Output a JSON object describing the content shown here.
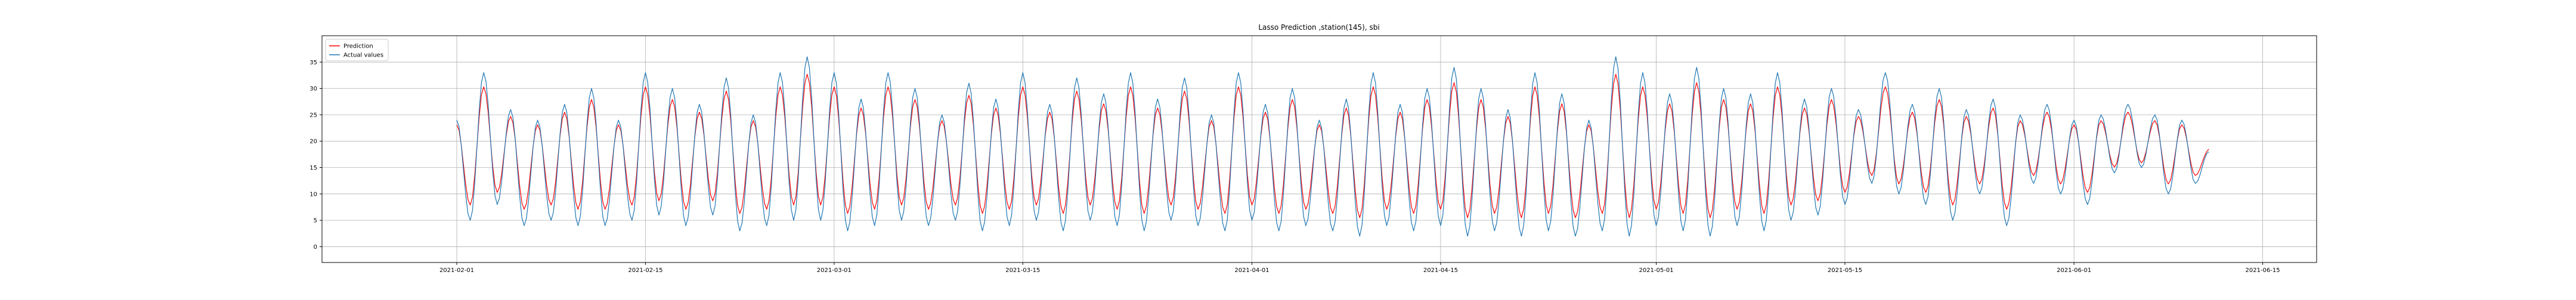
{
  "chart_data": {
    "type": "line",
    "title": "Lasso Prediction ,station(145), sbi",
    "xlabel": "",
    "ylabel": "",
    "grid": true,
    "legend_position": "top-left",
    "x_range": [
      "2021-01-22",
      "2021-06-19"
    ],
    "ylim": [
      -3,
      40
    ],
    "x_ticks": [
      "2021-02-01",
      "2021-02-15",
      "2021-03-01",
      "2021-03-15",
      "2021-04-01",
      "2021-04-15",
      "2021-05-01",
      "2021-05-15",
      "2021-06-01",
      "2021-06-15"
    ],
    "y_ticks": [
      0,
      5,
      10,
      15,
      20,
      25,
      30,
      35
    ],
    "series": [
      {
        "name": "Prediction",
        "color": "#ff0000",
        "offset": 0.5,
        "smoothing": 0.8
      },
      {
        "name": "Actual values",
        "color": "#1f77b4",
        "offset": 0,
        "smoothing": 1
      }
    ],
    "data": {
      "x_start": "2021-02-01",
      "x_end": "2021-06-11",
      "points": [
        [
          "2021-02-01",
          24
        ],
        [
          "2021-02-02",
          5
        ],
        [
          "2021-02-03",
          33
        ],
        [
          "2021-02-04",
          8
        ],
        [
          "2021-02-05",
          26
        ],
        [
          "2021-02-06",
          4
        ],
        [
          "2021-02-07",
          24
        ],
        [
          "2021-02-08",
          5
        ],
        [
          "2021-02-09",
          27
        ],
        [
          "2021-02-10",
          4
        ],
        [
          "2021-02-11",
          30
        ],
        [
          "2021-02-12",
          4
        ],
        [
          "2021-02-13",
          24
        ],
        [
          "2021-02-14",
          5
        ],
        [
          "2021-02-15",
          33
        ],
        [
          "2021-02-16",
          6
        ],
        [
          "2021-02-17",
          30
        ],
        [
          "2021-02-18",
          4
        ],
        [
          "2021-02-19",
          27
        ],
        [
          "2021-02-20",
          6
        ],
        [
          "2021-02-21",
          32
        ],
        [
          "2021-02-22",
          3
        ],
        [
          "2021-02-23",
          25
        ],
        [
          "2021-02-24",
          4
        ],
        [
          "2021-02-25",
          33
        ],
        [
          "2021-02-26",
          5
        ],
        [
          "2021-02-27",
          36
        ],
        [
          "2021-02-28",
          5
        ],
        [
          "2021-03-01",
          33
        ],
        [
          "2021-03-02",
          3
        ],
        [
          "2021-03-03",
          28
        ],
        [
          "2021-03-04",
          4
        ],
        [
          "2021-03-05",
          33
        ],
        [
          "2021-03-06",
          5
        ],
        [
          "2021-03-07",
          30
        ],
        [
          "2021-03-08",
          4
        ],
        [
          "2021-03-09",
          25
        ],
        [
          "2021-03-10",
          5
        ],
        [
          "2021-03-11",
          31
        ],
        [
          "2021-03-12",
          3
        ],
        [
          "2021-03-13",
          28
        ],
        [
          "2021-03-14",
          4
        ],
        [
          "2021-03-15",
          33
        ],
        [
          "2021-03-16",
          5
        ],
        [
          "2021-03-17",
          27
        ],
        [
          "2021-03-18",
          3
        ],
        [
          "2021-03-19",
          32
        ],
        [
          "2021-03-20",
          5
        ],
        [
          "2021-03-21",
          29
        ],
        [
          "2021-03-22",
          4
        ],
        [
          "2021-03-23",
          33
        ],
        [
          "2021-03-24",
          3
        ],
        [
          "2021-03-25",
          28
        ],
        [
          "2021-03-26",
          5
        ],
        [
          "2021-03-27",
          32
        ],
        [
          "2021-03-28",
          4
        ],
        [
          "2021-03-29",
          25
        ],
        [
          "2021-03-30",
          3
        ],
        [
          "2021-03-31",
          33
        ],
        [
          "2021-04-01",
          5
        ],
        [
          "2021-04-02",
          27
        ],
        [
          "2021-04-03",
          3
        ],
        [
          "2021-04-04",
          30
        ],
        [
          "2021-04-05",
          4
        ],
        [
          "2021-04-06",
          24
        ],
        [
          "2021-04-07",
          3
        ],
        [
          "2021-04-08",
          28
        ],
        [
          "2021-04-09",
          2
        ],
        [
          "2021-04-10",
          33
        ],
        [
          "2021-04-11",
          4
        ],
        [
          "2021-04-12",
          27
        ],
        [
          "2021-04-13",
          3
        ],
        [
          "2021-04-14",
          30
        ],
        [
          "2021-04-15",
          4
        ],
        [
          "2021-04-16",
          34
        ],
        [
          "2021-04-17",
          2
        ],
        [
          "2021-04-18",
          30
        ],
        [
          "2021-04-19",
          3
        ],
        [
          "2021-04-20",
          26
        ],
        [
          "2021-04-21",
          2
        ],
        [
          "2021-04-22",
          33
        ],
        [
          "2021-04-23",
          3
        ],
        [
          "2021-04-24",
          29
        ],
        [
          "2021-04-25",
          2
        ],
        [
          "2021-04-26",
          24
        ],
        [
          "2021-04-27",
          3
        ],
        [
          "2021-04-28",
          36
        ],
        [
          "2021-04-29",
          2
        ],
        [
          "2021-04-30",
          33
        ],
        [
          "2021-05-01",
          4
        ],
        [
          "2021-05-02",
          29
        ],
        [
          "2021-05-03",
          3
        ],
        [
          "2021-05-04",
          34
        ],
        [
          "2021-05-05",
          2
        ],
        [
          "2021-05-06",
          30
        ],
        [
          "2021-05-07",
          4
        ],
        [
          "2021-05-08",
          29
        ],
        [
          "2021-05-09",
          3
        ],
        [
          "2021-05-10",
          33
        ],
        [
          "2021-05-11",
          5
        ],
        [
          "2021-05-12",
          28
        ],
        [
          "2021-05-13",
          6
        ],
        [
          "2021-05-14",
          30
        ],
        [
          "2021-05-15",
          8
        ],
        [
          "2021-05-16",
          26
        ],
        [
          "2021-05-17",
          12
        ],
        [
          "2021-05-18",
          33
        ],
        [
          "2021-05-19",
          10
        ],
        [
          "2021-05-20",
          27
        ],
        [
          "2021-05-21",
          8
        ],
        [
          "2021-05-22",
          30
        ],
        [
          "2021-05-23",
          5
        ],
        [
          "2021-05-24",
          26
        ],
        [
          "2021-05-25",
          10
        ],
        [
          "2021-05-26",
          28
        ],
        [
          "2021-05-27",
          4
        ],
        [
          "2021-05-28",
          25
        ],
        [
          "2021-05-29",
          12
        ],
        [
          "2021-05-30",
          27
        ],
        [
          "2021-05-31",
          10
        ],
        [
          "2021-06-01",
          24
        ],
        [
          "2021-06-02",
          8
        ],
        [
          "2021-06-03",
          25
        ],
        [
          "2021-06-04",
          14
        ],
        [
          "2021-06-05",
          27
        ],
        [
          "2021-06-06",
          15
        ],
        [
          "2021-06-07",
          25
        ],
        [
          "2021-06-08",
          10
        ],
        [
          "2021-06-09",
          24
        ],
        [
          "2021-06-10",
          12
        ],
        [
          "2021-06-11",
          18
        ]
      ]
    }
  }
}
